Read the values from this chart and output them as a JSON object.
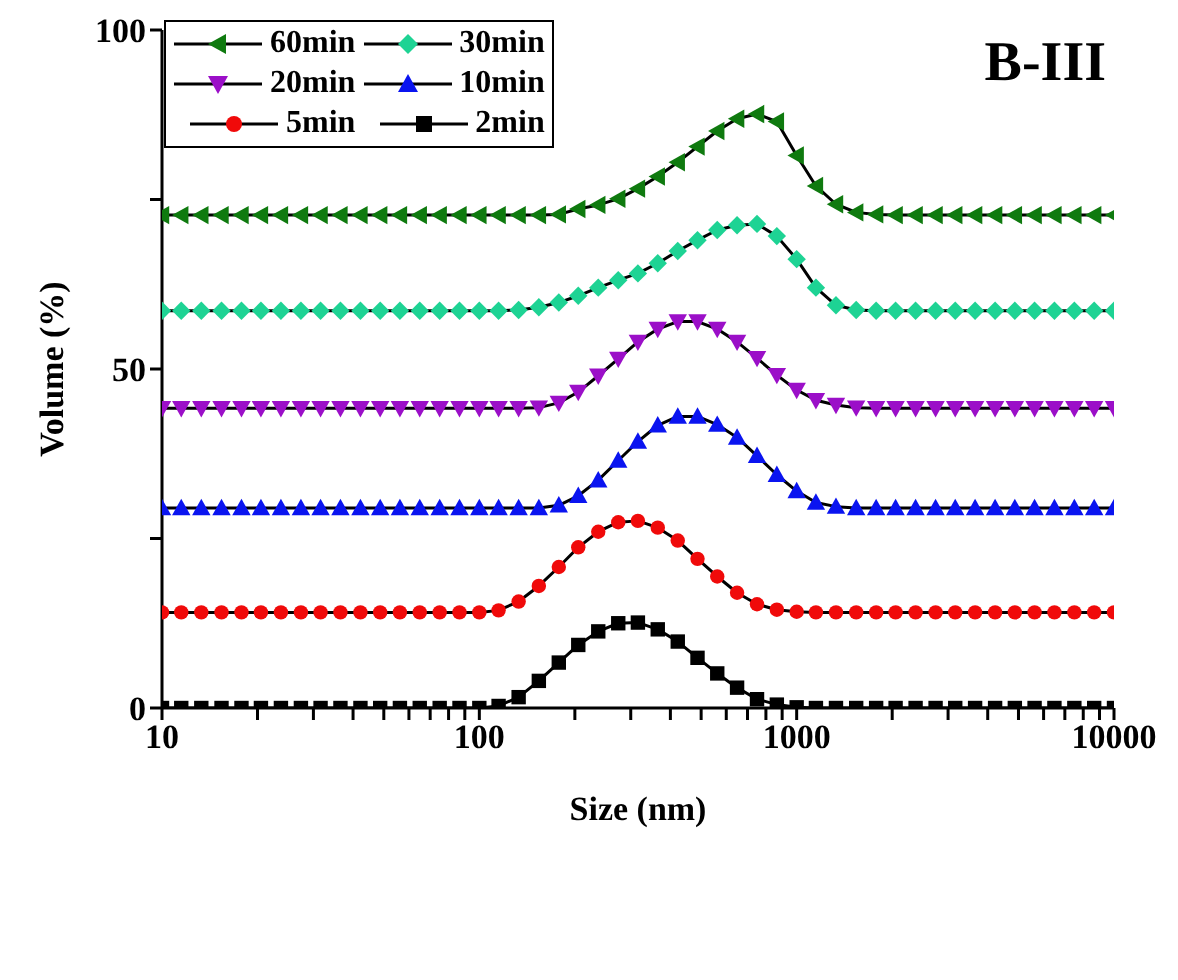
{
  "chart_data": {
    "type": "line",
    "title": "B-III",
    "xlabel": "Size (nm)",
    "ylabel": "Volume (%)",
    "log": "x",
    "x": [
      10,
      11.5,
      13.3,
      15.4,
      17.8,
      20.5,
      23.7,
      27.4,
      31.6,
      36.5,
      42.2,
      48.7,
      56.2,
      64.9,
      75.0,
      86.6,
      100,
      115,
      133,
      154,
      178,
      205,
      237,
      274,
      316,
      365,
      422,
      487,
      562,
      649,
      750,
      866,
      1000,
      1150,
      1330,
      1540,
      1780,
      2050,
      2370,
      2740,
      3160,
      3650,
      4220,
      4870,
      5620,
      6490,
      7500,
      8660,
      10000
    ],
    "series": [
      {
        "name": "60min",
        "color": "#0f7a0f",
        "marker": "triangle-left",
        "values": [
          72.7,
          72.7,
          72.7,
          72.7,
          72.7,
          72.7,
          72.7,
          72.7,
          72.7,
          72.7,
          72.7,
          72.7,
          72.7,
          72.7,
          72.7,
          72.7,
          72.7,
          72.7,
          72.7,
          72.7,
          72.8,
          73.6,
          74.2,
          75.1,
          76.6,
          78.4,
          80.5,
          82.8,
          85.1,
          86.9,
          87.6,
          86.5,
          81.5,
          77.0,
          74.3,
          73.1,
          72.8,
          72.7,
          72.7,
          72.7,
          72.7,
          72.7,
          72.7,
          72.7,
          72.7,
          72.7,
          72.7,
          72.7,
          72.7
        ]
      },
      {
        "name": "30min",
        "color": "#1ed394",
        "marker": "diamond",
        "values": [
          58.6,
          58.6,
          58.6,
          58.6,
          58.6,
          58.6,
          58.6,
          58.6,
          58.6,
          58.6,
          58.6,
          58.6,
          58.6,
          58.6,
          58.6,
          58.6,
          58.6,
          58.6,
          58.7,
          59.1,
          59.8,
          60.8,
          62.0,
          63.1,
          64.1,
          65.6,
          67.4,
          69.0,
          70.5,
          71.2,
          71.4,
          69.6,
          66.2,
          62.0,
          59.4,
          58.7,
          58.6,
          58.6,
          58.6,
          58.6,
          58.6,
          58.6,
          58.6,
          58.6,
          58.6,
          58.6,
          58.6,
          58.6,
          58.6
        ]
      },
      {
        "name": "20min",
        "color": "#9b0fc8",
        "marker": "triangle-down",
        "values": [
          44.2,
          44.2,
          44.2,
          44.2,
          44.2,
          44.2,
          44.2,
          44.2,
          44.2,
          44.2,
          44.2,
          44.2,
          44.2,
          44.2,
          44.2,
          44.2,
          44.2,
          44.2,
          44.2,
          44.3,
          45.0,
          46.6,
          49.0,
          51.5,
          54.0,
          55.9,
          57.0,
          57.0,
          55.9,
          54.0,
          51.6,
          49.1,
          46.9,
          45.4,
          44.7,
          44.3,
          44.2,
          44.2,
          44.2,
          44.2,
          44.2,
          44.2,
          44.2,
          44.2,
          44.2,
          44.2,
          44.2,
          44.2,
          44.2
        ]
      },
      {
        "name": "10min",
        "color": "#0a14f0",
        "marker": "triangle",
        "values": [
          29.5,
          29.5,
          29.5,
          29.5,
          29.5,
          29.5,
          29.5,
          29.5,
          29.5,
          29.5,
          29.5,
          29.5,
          29.5,
          29.5,
          29.5,
          29.5,
          29.5,
          29.5,
          29.5,
          29.5,
          29.9,
          31.3,
          33.6,
          36.5,
          39.3,
          41.7,
          43.0,
          43.0,
          41.8,
          39.9,
          37.2,
          34.4,
          32.0,
          30.3,
          29.7,
          29.5,
          29.5,
          29.5,
          29.5,
          29.5,
          29.5,
          29.5,
          29.5,
          29.5,
          29.5,
          29.5,
          29.5,
          29.5,
          29.5
        ]
      },
      {
        "name": "5min",
        "color": "#f00a0a",
        "marker": "circle",
        "values": [
          14.1,
          14.1,
          14.1,
          14.1,
          14.1,
          14.1,
          14.1,
          14.1,
          14.1,
          14.1,
          14.1,
          14.1,
          14.1,
          14.1,
          14.1,
          14.1,
          14.1,
          14.4,
          15.7,
          18.0,
          20.8,
          23.7,
          26.0,
          27.4,
          27.6,
          26.6,
          24.7,
          22.0,
          19.4,
          17.0,
          15.3,
          14.5,
          14.2,
          14.1,
          14.1,
          14.1,
          14.1,
          14.1,
          14.1,
          14.1,
          14.1,
          14.1,
          14.1,
          14.1,
          14.1,
          14.1,
          14.1,
          14.1,
          14.1
        ]
      },
      {
        "name": "2min",
        "color": "#000000",
        "marker": "square",
        "values": [
          0,
          0,
          0,
          0,
          0,
          0,
          0,
          0,
          0,
          0,
          0,
          0,
          0,
          0,
          0,
          0,
          0,
          0.3,
          1.6,
          4.0,
          6.7,
          9.3,
          11.3,
          12.5,
          12.6,
          11.6,
          9.8,
          7.4,
          5.1,
          3.0,
          1.3,
          0.5,
          0.1,
          0,
          0,
          0,
          0,
          0,
          0,
          0,
          0,
          0,
          0,
          0,
          0,
          0,
          0,
          0,
          0
        ]
      }
    ],
    "xlim": [
      10,
      10000
    ],
    "xticks": [
      10,
      {
        "value": 20,
        "label": null
      },
      {
        "value": 30,
        "label": null
      },
      {
        "value": 40,
        "label": null
      },
      {
        "value": 50,
        "label": null
      },
      {
        "value": 60,
        "label": null
      },
      {
        "value": 70,
        "label": null
      },
      {
        "value": 80,
        "label": null
      },
      {
        "value": 90,
        "label": null
      },
      100,
      {
        "value": 200,
        "label": null
      },
      {
        "value": 300,
        "label": null
      },
      {
        "value": 400,
        "label": null
      },
      {
        "value": 500,
        "label": null
      },
      {
        "value": 600,
        "label": null
      },
      {
        "value": 700,
        "label": null
      },
      {
        "value": 800,
        "label": null
      },
      {
        "value": 900,
        "label": null
      },
      1000,
      {
        "value": 2000,
        "label": null
      },
      {
        "value": 3000,
        "label": null
      },
      {
        "value": 4000,
        "label": null
      },
      {
        "value": 5000,
        "label": null
      },
      {
        "value": 6000,
        "label": null
      },
      {
        "value": 7000,
        "label": null
      },
      {
        "value": 8000,
        "label": null
      },
      {
        "value": 9000,
        "label": null
      },
      10000
    ],
    "ylim": [
      0,
      100
    ],
    "yticks": [
      0,
      {
        "value": 25,
        "label": null
      },
      50,
      {
        "value": 75,
        "label": null
      },
      100
    ],
    "grid": false,
    "legend": "top left"
  }
}
